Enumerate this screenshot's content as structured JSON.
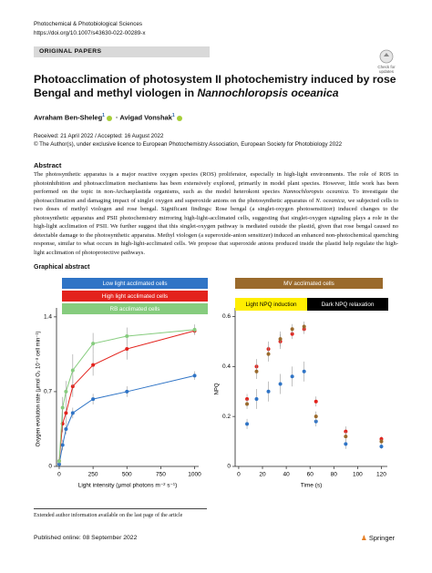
{
  "header": {
    "journal": "Photochemical & Photobiological Sciences",
    "doi": "https://doi.org/10.1007/s43630-022-00289-x",
    "section": "ORIGINAL PAPERS",
    "badge": "Check for updates"
  },
  "title": [
    "Photoacclimation of photosystem II photochemistry induced by rose Bengal and methyl viologen in ",
    "Nannochloropsis oceanica"
  ],
  "authors": {
    "names": [
      "Avraham Ben-Sheleg",
      "Avigad Vonshak"
    ],
    "affiliations": [
      "1",
      "1"
    ],
    "separator": "·"
  },
  "received": "Received: 21 April 2022 / Accepted: 16 August 2022",
  "copyright": "© The Author(s), under exclusive licence to European Photochemistry Association, European Society for Photobiology 2022",
  "abstract": {
    "heading": "Abstract",
    "text": [
      "The photosynthetic apparatus is a major reactive oxygen species (ROS) proliferator, especially in high-light environments. The role of ROS in photoinhibition and photoacclimation mechanisms has been extensively explored, primarily in model plant species. However, little work has been performed on the topic in non-Archaeplastida organisms, such as the model heterokont species ",
      "Nannochloropsis oceanica.",
      " To investigate the photoacclimation and damaging impact of singlet oxygen and superoxide anions on the photosynthetic apparatus of ",
      "N. oceanica,",
      " we subjected cells to two doses of methyl viologen and rose bengal. Significant findings: Rose bengal (a singlet-oxygen photosensitizer) induced changes to the photosynthetic apparatus and PSII photochemistry mirroring high-light-acclimated cells, suggesting that singlet-oxygen signaling plays a role in the high-light acclimation of PSII. We further suggest that this singlet-oxygen pathway is mediated outside the plastid, given that rose bengal caused no detectable damage to the photosynthetic apparatus. Methyl viologen (a superoxide-anion sensitizer) induced an enhanced non-photochemical quenching response, similar to what occurs in high-light-acclimated cells. We propose that superoxide anions produced inside the plastid help regulate the high-light acclimation of photoprotective pathways."
    ]
  },
  "graphical_abstract": "Graphical abstract",
  "chart_data": [
    {
      "type": "scatter",
      "lines": true,
      "xlabel": "Light intensity (μmol photons m⁻² s⁻¹)",
      "ylabel": "Oxygen evolution rate (μmol O₂ 10⁻⁸ cell min⁻¹)",
      "x": [
        0,
        25,
        50,
        100,
        250,
        500,
        1000
      ],
      "xlim": [
        -20,
        1030
      ],
      "xticks": [
        0,
        250,
        500,
        750,
        1000
      ],
      "ylim": [
        0,
        1.45
      ],
      "yticks": [
        0,
        0.7,
        1.4
      ],
      "series": [
        {
          "name": "Low light acclimated cells",
          "color": "#2f74c6",
          "values": [
            0.02,
            0.2,
            0.35,
            0.5,
            0.63,
            0.7,
            0.85
          ],
          "errors": [
            0.02,
            0.05,
            0.05,
            0.05,
            0.05,
            0.05,
            0.04
          ]
        },
        {
          "name": "High light acclimated cells",
          "color": "#e3221c",
          "values": [
            0.05,
            0.4,
            0.5,
            0.75,
            0.95,
            1.1,
            1.27
          ],
          "errors": [
            0.03,
            0.08,
            0.1,
            0.1,
            0.1,
            0.1,
            0.03
          ]
        },
        {
          "name": "RB acclimated cells",
          "color": "#86cc7e",
          "values": [
            0.05,
            0.55,
            0.7,
            0.9,
            1.15,
            1.22,
            1.28
          ],
          "errors": [
            0.03,
            0.1,
            0.1,
            0.15,
            0.1,
            0.08,
            0.05
          ]
        }
      ]
    },
    {
      "type": "scatter",
      "lines": false,
      "xlabel": "Time (s)",
      "ylabel": "NPQ",
      "x": [
        7,
        15,
        25,
        35,
        45,
        55,
        65,
        90,
        120
      ],
      "xlim": [
        -3,
        125
      ],
      "xticks": [
        0,
        20,
        40,
        60,
        80,
        100,
        120
      ],
      "ylim": [
        0,
        0.62
      ],
      "yticks": [
        0,
        0.2,
        0.4,
        0.6
      ],
      "phases": [
        {
          "label": "Light NPQ induction",
          "color": "#ffee00"
        },
        {
          "label": "Dark NPQ relaxation",
          "color": "#000000"
        }
      ],
      "series": [
        {
          "color": "#2f74c6",
          "values": [
            0.17,
            0.27,
            0.3,
            0.33,
            0.36,
            0.38,
            0.18,
            0.09,
            0.08
          ],
          "errors": [
            0.02,
            0.04,
            0.04,
            0.04,
            0.04,
            0.04,
            0.02,
            0.02,
            0.01
          ]
        },
        {
          "color": "#e3221c",
          "values": [
            0.27,
            0.4,
            0.47,
            0.5,
            0.53,
            0.55,
            0.26,
            0.14,
            0.11
          ],
          "errors": [
            0.02,
            0.03,
            0.03,
            0.03,
            0.02,
            0.02,
            0.02,
            0.02,
            0.01
          ]
        },
        {
          "name": "MV acclimated cells",
          "color": "#9a6a2c",
          "values": [
            0.25,
            0.38,
            0.45,
            0.51,
            0.55,
            0.56,
            0.2,
            0.12,
            0.1
          ],
          "errors": [
            0.02,
            0.03,
            0.03,
            0.03,
            0.02,
            0.02,
            0.02,
            0.02,
            0.01
          ]
        }
      ]
    }
  ],
  "footnote": "Extended author information available on the last page of the article",
  "published": "Published online: 08 September 2022",
  "publisher": "Springer"
}
